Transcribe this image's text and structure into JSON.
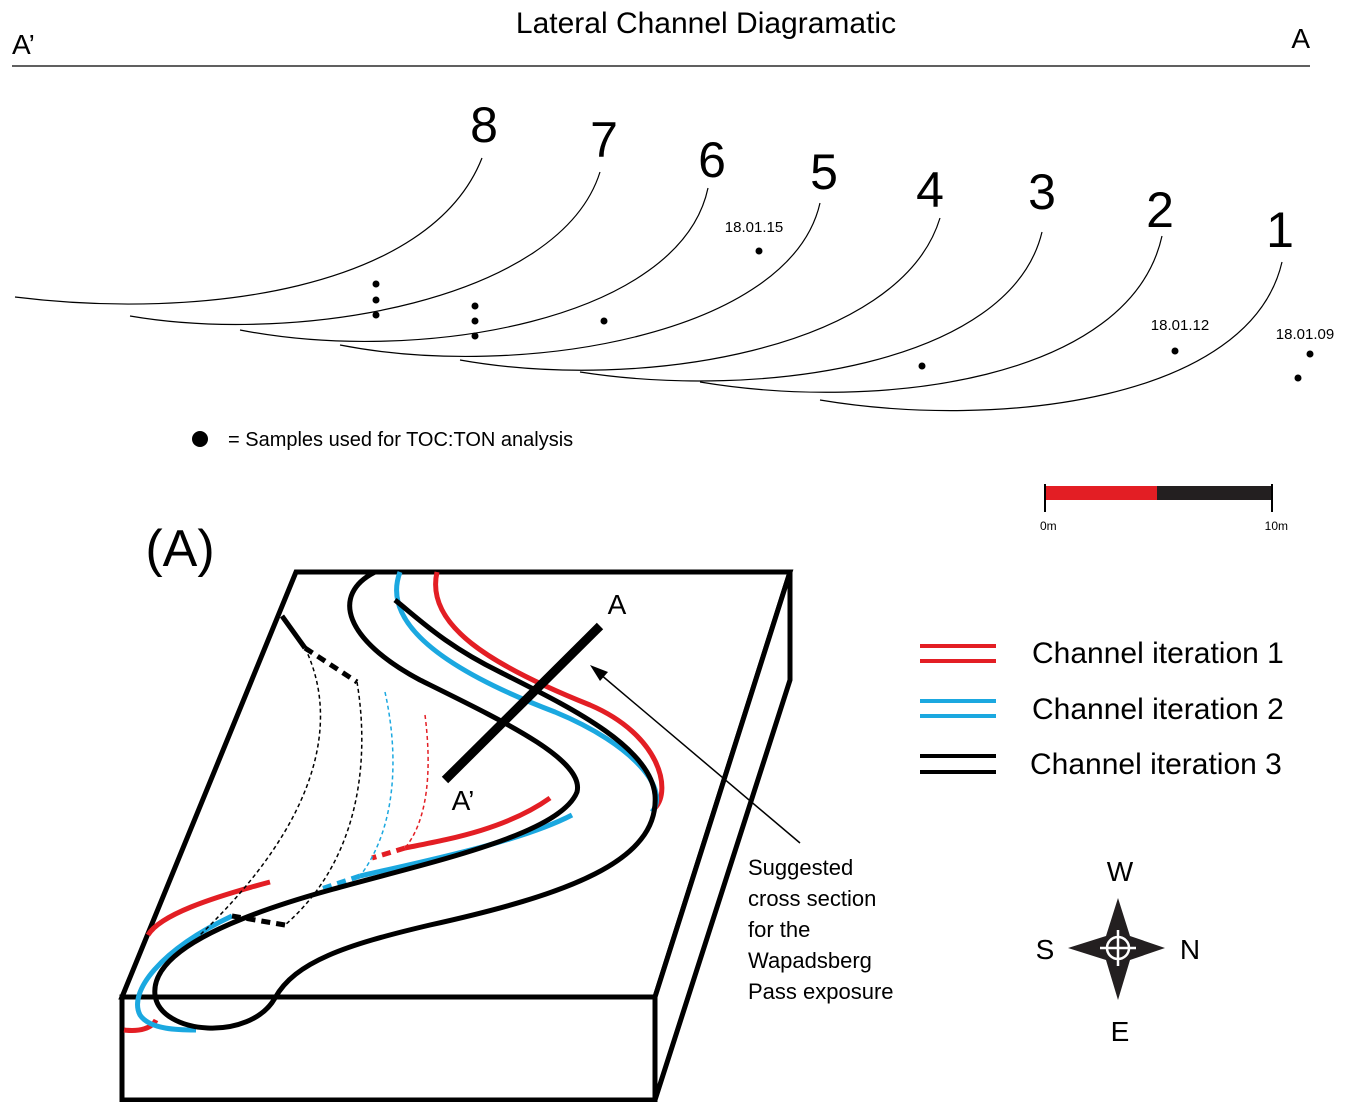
{
  "header": {
    "title": "Lateral Channel Diagramatic",
    "left_label": "A’",
    "right_label": "A"
  },
  "cross_section": {
    "channel_numbers": [
      "8",
      "7",
      "6",
      "5",
      "4",
      "3",
      "2",
      "1"
    ],
    "sample_labels": [
      "18.01.15",
      "18.01.12",
      "18.01.09"
    ],
    "key": "= Samples used for TOC:TON analysis",
    "scale": {
      "start": "0m",
      "end": "10m"
    }
  },
  "block_diagram": {
    "panel_label": "(A)",
    "section_end": "A",
    "section_start": "A’",
    "annotation": [
      "Suggested",
      "cross section",
      "for the",
      "Wapadsberg",
      "Pass exposure"
    ]
  },
  "legend": {
    "items": [
      "Channel iteration 1",
      "Channel iteration 2",
      "Channel iteration 3"
    ]
  },
  "compass": {
    "top": "W",
    "left": "S",
    "right": "N",
    "bottom": "E"
  }
}
